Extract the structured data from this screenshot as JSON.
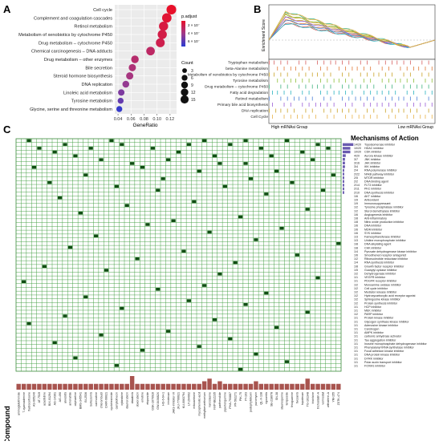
{
  "panels": {
    "a": "A",
    "b": "B",
    "c": "C"
  },
  "chart_data": [
    {
      "type": "scatter",
      "panel": "A",
      "xlabel": "GeneRatio",
      "xticks": [
        0.04,
        0.06,
        0.08,
        0.1,
        0.12
      ],
      "xlim": [
        0.035,
        0.13
      ],
      "grid": true,
      "categories": [
        "Cell cycle",
        "Complement and coagulation cascades",
        "Retinol metabolism",
        "Metabolism of xenobiotics by cytochrome P450",
        "Drug metabolism – cytochrome P450",
        "Chemical carcinogenesis – DNA adducts",
        "Drug metabolism – other enzymes",
        "Bile secretion",
        "Steroid hormone biosynthesis",
        "DNA replication",
        "Linoleic acid metabolism",
        "Tyrosine metabolism",
        "Glycine, serine and threonine metabolism"
      ],
      "gene_ratio": [
        0.122,
        0.115,
        0.11,
        0.108,
        0.105,
        0.09,
        0.066,
        0.062,
        0.058,
        0.052,
        0.045,
        0.044,
        0.042
      ],
      "count": [
        15,
        14,
        13,
        13,
        12,
        11,
        8,
        7,
        7,
        6,
        5,
        4,
        4
      ],
      "p_adjust_level": [
        0.0,
        0.05,
        0.12,
        0.15,
        0.18,
        0.3,
        0.35,
        0.4,
        0.45,
        0.55,
        0.65,
        0.75,
        0.95
      ],
      "legend_color": {
        "title": "p.adjust",
        "ticks": [
          "2 × 10⁻",
          "4 × 10⁻",
          "6 × 10⁻"
        ]
      },
      "legend_size": {
        "title": "Count",
        "values": [
          3,
          6,
          9,
          12,
          15
        ]
      }
    },
    {
      "type": "line",
      "panel": "B",
      "ylabel": "Enrichment Score",
      "xlabel_left": "High mRNAsi Group",
      "xlabel_right": "Low mRNAsi Group",
      "series": [
        {
          "name": "Tryptophan metabolism",
          "color": "#d65f5f"
        },
        {
          "name": "beta-Alanine metabolism",
          "color": "#e07b39"
        },
        {
          "name": "Metabolism of xenobiotics by cytochrome P450",
          "color": "#c9a227"
        },
        {
          "name": "Tyrosine metabolism",
          "color": "#8fbf3a"
        },
        {
          "name": "Drug metabolism – cytochrome P450",
          "color": "#3fb27f"
        },
        {
          "name": "Fatty acid degradation",
          "color": "#2bb3c0"
        },
        {
          "name": "Retinol metabolism",
          "color": "#4a7fd6"
        },
        {
          "name": "Primary bile acid biosynthesis",
          "color": "#9b5fd6"
        },
        {
          "name": "DNA replication",
          "color": "#c9a227"
        },
        {
          "name": "Cell Cycle",
          "color": "#e8b34a"
        }
      ]
    },
    {
      "type": "heatmap",
      "panel": "C",
      "legend_title": "Mechanisms of Action",
      "y_axis_label": "Compound",
      "mechanisms": [
        {
          "count": "14/20",
          "label": "Topoisomerase inhibitor"
        },
        {
          "count": "10/20",
          "label": "HDAC inhibitor"
        },
        {
          "count": "10/20",
          "label": "CDK inhibitor"
        },
        {
          "count": "4/20",
          "label": "Aurora kinase inhibitor"
        },
        {
          "count": "3/7",
          "label": "JNK inhibitor"
        },
        {
          "count": "3/16",
          "label": "JAK inhibitor"
        },
        {
          "count": "3/4",
          "label": "IKK inhibitor"
        },
        {
          "count": "2/4",
          "label": "RNA polymerase inhibitor"
        },
        {
          "count": "2/22",
          "label": "NFkB pathway inhibitor"
        },
        {
          "count": "2/5",
          "label": "MTOR inhibitor"
        },
        {
          "count": "2/2",
          "label": "DNA binding agent"
        },
        {
          "count": "2/14",
          "label": "FLT3 inhibitor"
        },
        {
          "count": "2/11",
          "label": "PKC inhibitor"
        },
        {
          "count": "2/10",
          "label": "DNA synthesis inhibitor"
        },
        {
          "count": "1/6",
          "label": "AKT inhibitor"
        },
        {
          "count": "1/9",
          "label": "Antioxidant"
        },
        {
          "count": "1/9",
          "label": "Immunosuppressant"
        },
        {
          "count": "1/2",
          "label": "Tyrosine phosphatase inhibitor"
        },
        {
          "count": "1/2",
          "label": "Sterol demethylase inhibitor"
        },
        {
          "count": "1/6",
          "label": "Angiogenesis inhibitor"
        },
        {
          "count": "1/8",
          "label": "Anti-inflammatory"
        },
        {
          "count": "1/8",
          "label": "Nitric oxide production inhibitor"
        },
        {
          "count": "1/6",
          "label": "DNA inhibitor"
        },
        {
          "count": "1/6",
          "label": "MDM inhibitor"
        },
        {
          "count": "1/6",
          "label": "SYK inhibitor"
        },
        {
          "count": "1/3",
          "label": "Farnesyltransferase inhibitor"
        },
        {
          "count": "1/3",
          "label": "Uridine monophosphate inhibitor"
        },
        {
          "count": "1/8",
          "label": "DNA alkylating agent"
        },
        {
          "count": "1/8",
          "label": "CHK inhibitor"
        },
        {
          "count": "1/4",
          "label": "Pyruvate dehydrogenase kinase inhibitor"
        },
        {
          "count": "1/6",
          "label": "Smoothened receptor antagonist"
        },
        {
          "count": "1/2",
          "label": "Ribonucleotide reductase inhibitor"
        },
        {
          "count": "1/4",
          "label": "RNA synthesis inhibitor"
        },
        {
          "count": "1/8",
          "label": "Growth factor receptor inhibitor"
        },
        {
          "count": "1/5",
          "label": "Guanylyl cyclase inhibitor"
        },
        {
          "count": "1/2",
          "label": "Dehydrogenase inhibitor"
        },
        {
          "count": "1/1",
          "label": "VEGFR inhibitor"
        },
        {
          "count": "1/1",
          "label": "PDGFR receptor inhibitor"
        },
        {
          "count": "1/2",
          "label": "Monoamine oxidase inhibitor"
        },
        {
          "count": "1/2",
          "label": "Cell cycle inhibitor"
        },
        {
          "count": "1/2",
          "label": "Mediator release inhibitor"
        },
        {
          "count": "1/2",
          "label": "Hydroxycarboxylic acid receptor agonist"
        },
        {
          "count": "1/2",
          "label": "Sphingosine kinase inhibitor"
        },
        {
          "count": "1/2",
          "label": "Protein synthesis inhibitor"
        },
        {
          "count": "1/1",
          "label": "HCP inhibitor"
        },
        {
          "count": "1/1",
          "label": "MEK inhibitor"
        },
        {
          "count": "1/2",
          "label": "PARP inhibitor"
        },
        {
          "count": "1/1",
          "label": "Protein kinase inhibitor"
        },
        {
          "count": "1/1",
          "label": "Glycogen synthase kinase inhibitor"
        },
        {
          "count": "1/1",
          "label": "Adenosine kinase inhibitor"
        },
        {
          "count": "1/1",
          "label": "Carcinogen"
        },
        {
          "count": "1/1",
          "label": "AMPK inhibitor"
        },
        {
          "count": "1/1",
          "label": "carbonic anhydrase activator"
        },
        {
          "count": "1/1",
          "label": "Tau aggregation inhibitor"
        },
        {
          "count": "1/1",
          "label": "Inosine monophosphate dehydrogenase inhibitor"
        },
        {
          "count": "1/1",
          "label": "Phenylalanyl tRNA synthetase inhibitor"
        },
        {
          "count": "1/1",
          "label": "Focal adhesion kinase inhibitor"
        },
        {
          "count": "1/1",
          "label": "DNA protein kinase inhibitor"
        },
        {
          "count": "1/1",
          "label": "DYRK inhibitor"
        },
        {
          "count": "1/1",
          "label": "Polar auxin transport inhibitor"
        },
        {
          "count": "1/1",
          "label": "FOXM1 inhibitor"
        }
      ],
      "mechanism_bar_values": [
        14,
        10,
        10,
        4,
        3,
        3,
        3,
        2,
        2,
        2,
        2,
        2,
        2,
        2
      ],
      "compounds": [
        "aminoglutethimide",
        "7-cyanoadenine",
        "fludrocortisone",
        "AS-605240",
        "AT-7519",
        "azacitidine",
        "BIX-01294",
        "AG-14361",
        "AG-490",
        "alvocidib",
        "amonafide",
        "cephaeline",
        "BMS-345541",
        "BI-2536",
        "bortezomib",
        "carmustine",
        "chlorambucil",
        "CHIR-99021",
        "cycloheximide",
        "camptothecin",
        "cytarabine",
        "daunorubicin",
        "dasatinib",
        "doxorubicin",
        "emetine",
        "etoposide",
        "GSK-1070916",
        "GW-843682X",
        "HG-6-64-1",
        "irinotecan",
        "JAK3-Inhibitor-VI",
        "JNJ-7706621",
        "KU-0063794",
        "LY-294002",
        "mitoxantrone",
        "mycophenolic-acid",
        "methylbenzethonium",
        "narciclasine",
        "NVP-BEZ235",
        "parthenolide",
        "piperlongumine",
        "PHA-793887",
        "PF-562271",
        "PIK-75",
        "PI-103",
        "podophyllotoxin",
        "puromycin",
        "QL-X-138",
        "rigosertib",
        "SB-218078",
        "SN-38",
        "staurosporine",
        "teniposide",
        "thioguanine",
        "tivozanib",
        "topotecan",
        "TG-101348",
        "triciribine",
        "trichostatin-A",
        "vorinostat",
        "withaferin-A",
        "YM-155",
        "ZSTK-474"
      ],
      "compound_bar_values": [
        1,
        1,
        1,
        1,
        1,
        1,
        1,
        1,
        1,
        1,
        1,
        1,
        1,
        1,
        1,
        1,
        1,
        1,
        1,
        1,
        1,
        1,
        4,
        1,
        1,
        1,
        1,
        1,
        1,
        1,
        1,
        1,
        1,
        1,
        1,
        1,
        2,
        3,
        1,
        2,
        1,
        1,
        1,
        1,
        1,
        1,
        2,
        1,
        1,
        1,
        1,
        1,
        1,
        1,
        1,
        1,
        3,
        1,
        1,
        1,
        1,
        1,
        1
      ],
      "cells": [
        [
          0,
          2
        ],
        [
          0,
          18
        ],
        [
          0,
          36
        ],
        [
          0,
          44
        ],
        [
          0,
          52
        ],
        [
          1,
          9
        ],
        [
          1,
          20
        ],
        [
          1,
          33
        ],
        [
          1,
          41
        ],
        [
          1,
          58
        ],
        [
          2,
          4
        ],
        [
          2,
          14
        ],
        [
          2,
          26
        ],
        [
          2,
          47
        ],
        [
          2,
          60
        ],
        [
          3,
          7
        ],
        [
          3,
          31
        ],
        [
          3,
          55
        ],
        [
          4,
          11
        ],
        [
          4,
          38
        ],
        [
          4,
          49
        ],
        [
          5,
          16
        ],
        [
          5,
          29
        ],
        [
          5,
          57
        ],
        [
          6,
          22
        ],
        [
          6,
          44
        ],
        [
          6,
          39
        ],
        [
          7,
          3
        ],
        [
          7,
          24
        ],
        [
          8,
          35
        ],
        [
          8,
          50
        ],
        [
          9,
          13
        ],
        [
          9,
          61
        ],
        [
          10,
          28
        ],
        [
          10,
          45
        ],
        [
          11,
          6
        ],
        [
          11,
          53
        ],
        [
          12,
          19
        ],
        [
          12,
          40
        ],
        [
          13,
          27
        ],
        [
          13,
          59
        ],
        [
          14,
          48
        ],
        [
          15,
          8
        ],
        [
          16,
          34
        ],
        [
          17,
          21
        ],
        [
          18,
          56
        ],
        [
          19,
          12
        ],
        [
          20,
          43
        ],
        [
          21,
          30
        ],
        [
          22,
          25
        ],
        [
          23,
          51
        ],
        [
          24,
          37
        ],
        [
          25,
          15
        ],
        [
          26,
          46
        ],
        [
          27,
          62
        ],
        [
          28,
          10
        ],
        [
          29,
          32
        ],
        [
          30,
          54
        ],
        [
          31,
          23
        ],
        [
          32,
          42
        ],
        [
          33,
          5
        ],
        [
          34,
          17
        ],
        [
          35,
          39
        ],
        [
          36,
          58
        ],
        [
          37,
          1
        ],
        [
          38,
          36
        ],
        [
          39,
          27
        ],
        [
          40,
          48
        ],
        [
          41,
          13
        ],
        [
          42,
          33
        ],
        [
          43,
          44
        ],
        [
          44,
          20
        ],
        [
          45,
          56
        ],
        [
          46,
          9
        ],
        [
          47,
          38
        ],
        [
          48,
          2
        ],
        [
          49,
          50
        ],
        [
          50,
          29
        ],
        [
          51,
          16
        ],
        [
          52,
          41
        ],
        [
          53,
          7
        ],
        [
          54,
          35
        ],
        [
          55,
          24
        ],
        [
          56,
          46
        ],
        [
          57,
          11
        ],
        [
          58,
          52
        ],
        [
          59,
          19
        ],
        [
          60,
          43
        ]
      ]
    }
  ]
}
